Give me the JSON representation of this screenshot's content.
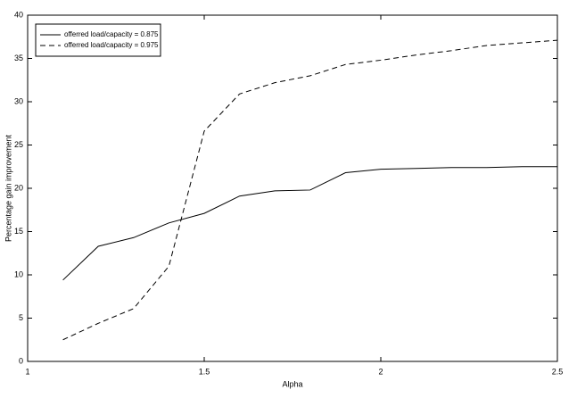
{
  "chart_data": {
    "type": "line",
    "xlabel": "Alpha",
    "ylabel": "Percentage gain improvement",
    "x": [
      1.1,
      1.2,
      1.3,
      1.4,
      1.5,
      1.6,
      1.7,
      1.8,
      1.9,
      2.0,
      2.1,
      2.2,
      2.3,
      2.4,
      2.5
    ],
    "series": [
      {
        "name": "offerred load/capacity = 0.875",
        "color": "#000000",
        "dash": "solid",
        "values": [
          9.4,
          13.3,
          14.3,
          16.0,
          17.1,
          19.1,
          19.7,
          19.8,
          21.8,
          22.2,
          22.3,
          22.4,
          22.4,
          22.5,
          22.5
        ]
      },
      {
        "name": "offerred load/capacity = 0.975",
        "color": "#000000",
        "dash": "dashed",
        "values": [
          2.5,
          4.4,
          6.1,
          11.0,
          26.6,
          30.9,
          32.2,
          33.0,
          34.3,
          34.8,
          35.4,
          35.9,
          36.5,
          36.8,
          37.1
        ]
      }
    ],
    "xlim": [
      1,
      2.5
    ],
    "xticks": [
      1,
      1.5,
      2,
      2.5
    ],
    "ylim": [
      0,
      40
    ],
    "yticks": [
      0,
      5,
      10,
      15,
      20,
      25,
      30,
      35,
      40
    ],
    "legend": "upper left",
    "grid": false
  }
}
